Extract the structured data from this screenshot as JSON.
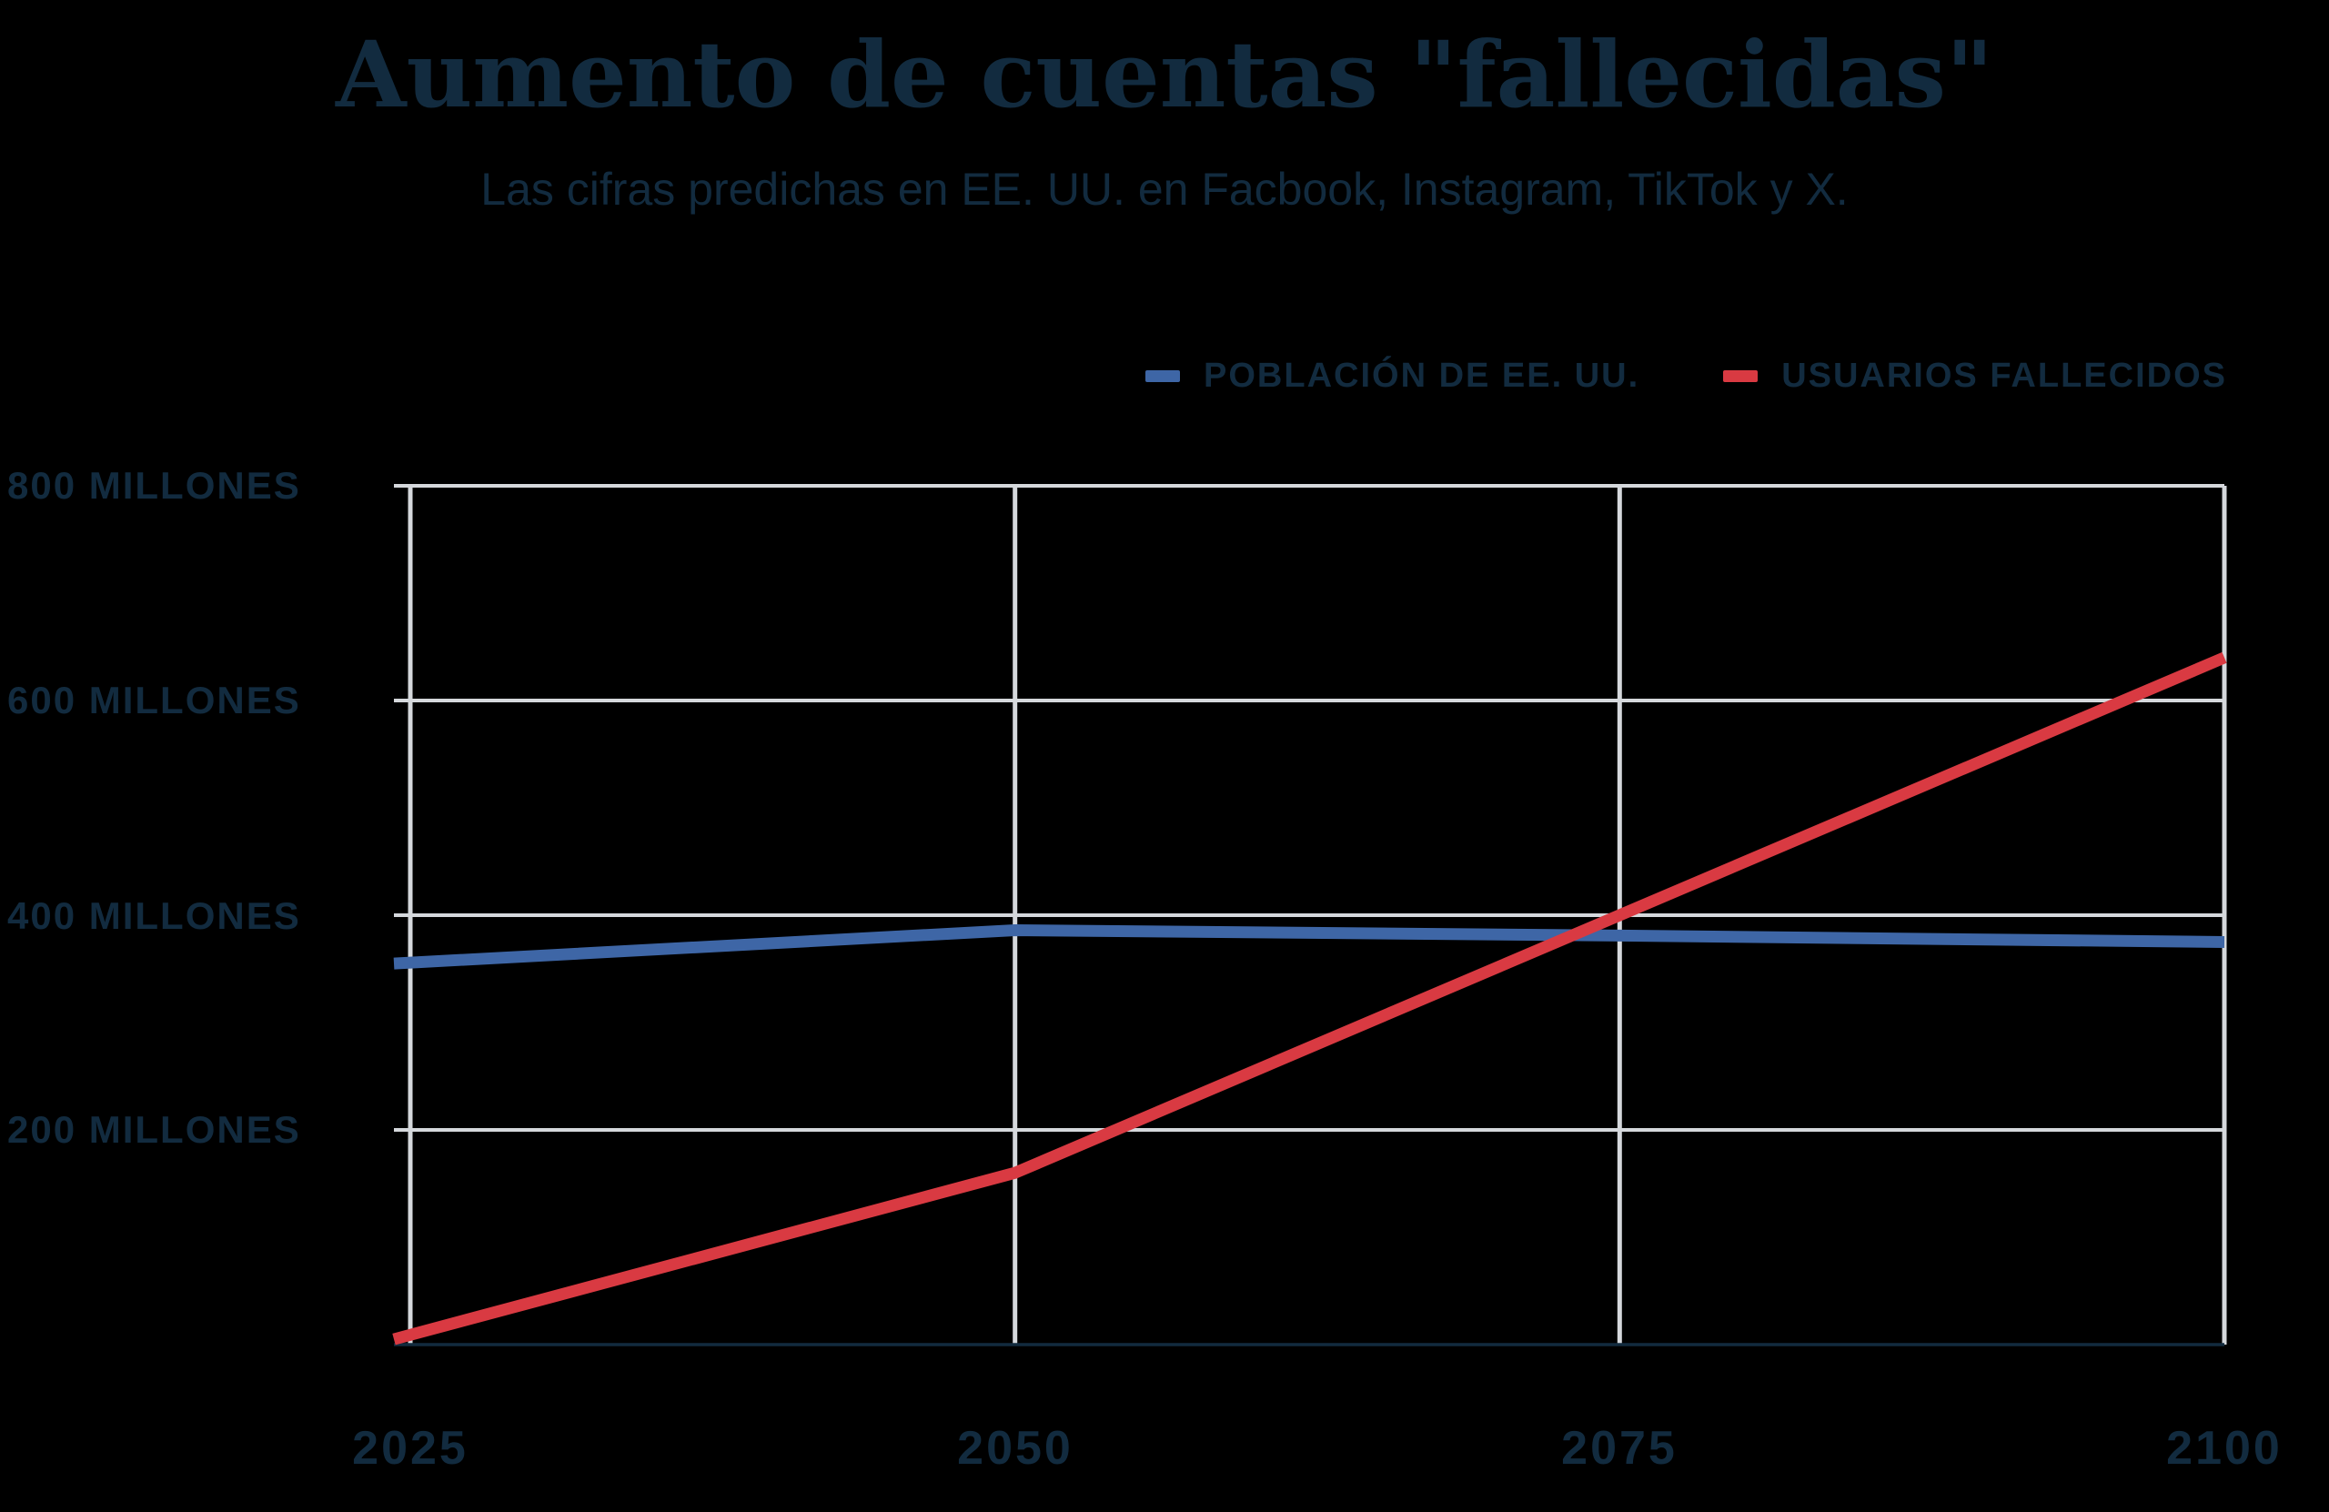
{
  "header": {
    "title": "Aumento de cuentas \"fallecidas\"",
    "subtitle": "Las cifras predichas en EE. UU. en Facbook, Instagram, TikTok y X."
  },
  "legend": {
    "items": [
      {
        "label": "POBLACIÓN DE EE. UU.",
        "color": "#3e66a6"
      },
      {
        "label": "USUARIOS FALLECIDOS",
        "color": "#d93a42"
      }
    ]
  },
  "chart_data": {
    "type": "line",
    "title": "Aumento de cuentas \"fallecidas\"",
    "subtitle": "Las cifras predichas en EE. UU. en Facbook, Instagram, TikTok y X.",
    "x": [
      2025,
      2050,
      2075,
      2100
    ],
    "x_tick_labels": [
      "2025",
      "2050",
      "2075",
      "2100"
    ],
    "y_tick_values": [
      800,
      600,
      400,
      200
    ],
    "y_tick_labels": [
      "800 MILLONES",
      "600 MILLONES",
      "400 MILLONES",
      "200 MILLONES"
    ],
    "ylim": [
      0,
      800
    ],
    "units": "millones",
    "grid": true,
    "legend_position": "top-right",
    "series": [
      {
        "name": "POBLACIÓN DE EE. UU.",
        "color": "#3e66a6",
        "values": [
          355,
          386,
          381,
          375
        ]
      },
      {
        "name": "USUARIOS FALLECIDOS",
        "color": "#d93a42",
        "values": [
          5,
          160,
          400,
          640
        ]
      }
    ]
  },
  "colors": {
    "background": "#000000",
    "text": "#122b3f",
    "grid": "#d5d8dc",
    "axis": "#122b3f",
    "population_line": "#3e66a6",
    "deceased_line": "#d93a42"
  }
}
